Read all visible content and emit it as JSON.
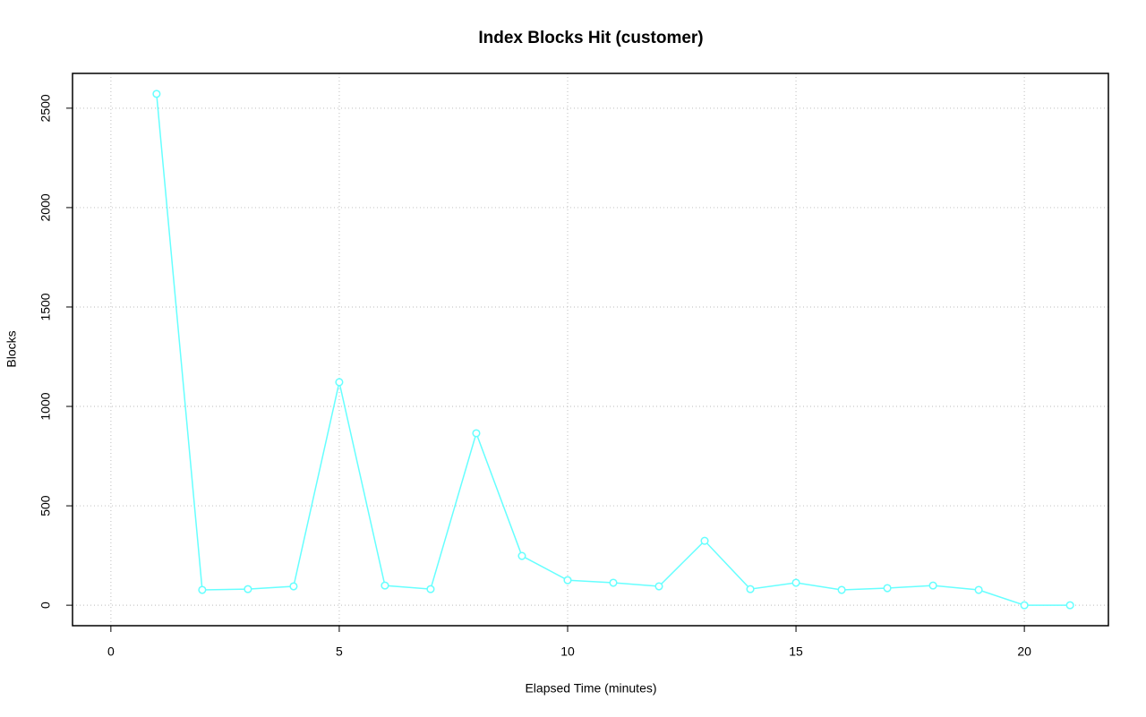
{
  "chart_data": {
    "type": "line",
    "title": "Index Blocks Hit (customer)",
    "x_label": "Elapsed Time (minutes)",
    "y_label": "Blocks",
    "x": [
      1,
      2,
      3,
      4,
      5,
      6,
      7,
      8,
      9,
      10,
      11,
      12,
      13,
      14,
      15,
      16,
      17,
      18,
      19,
      20,
      21
    ],
    "series": [
      {
        "name": "customer",
        "color": "#66ffff",
        "values": [
          2572,
          77,
          81,
          95,
          1122,
          99,
          81,
          865,
          248,
          126,
          113,
          95,
          324,
          81,
          113,
          77,
          86,
          99,
          77,
          0,
          0
        ]
      }
    ],
    "xlim": [
      -0.84,
      21.84
    ],
    "xticks": [
      0,
      5,
      10,
      15,
      20
    ],
    "ylim": [
      -103,
      2675
    ],
    "yticks": [
      0,
      500,
      1000,
      1500,
      2000,
      2500
    ],
    "grid": true,
    "markers": true
  }
}
